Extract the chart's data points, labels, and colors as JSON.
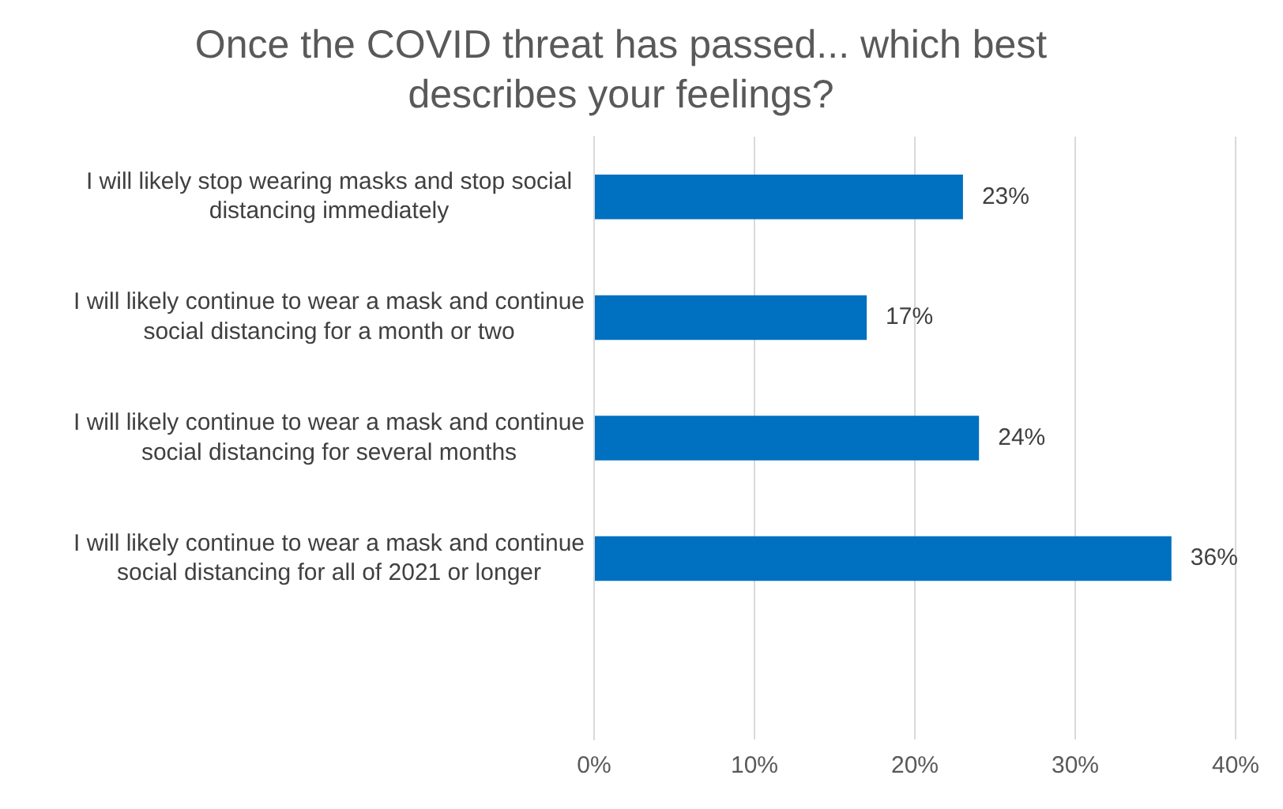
{
  "chart_data": {
    "type": "bar",
    "orientation": "horizontal",
    "title": "Once the COVID threat has passed... which best describes your feelings?",
    "categories": [
      "I will likely stop wearing masks and stop social distancing immediately",
      "I will likely continue to wear a mask and continue social distancing for a month or two",
      "I will likely continue to wear a mask and continue social distancing for several months",
      "I will likely continue to wear a mask and continue social distancing for all of 2021 or longer",
      null
    ],
    "values": [
      23,
      17,
      24,
      36,
      null
    ],
    "value_labels": [
      "23%",
      "17%",
      "24%",
      "36%",
      null
    ],
    "color": "#0070c0",
    "xlim": [
      0,
      40
    ],
    "xticks": [
      {
        "value": 0,
        "label": "0%"
      },
      {
        "value": 10,
        "label": "10%"
      },
      {
        "value": 20,
        "label": "20%"
      },
      {
        "value": 30,
        "label": "30%"
      },
      {
        "value": 40,
        "label": "40%"
      }
    ],
    "grid": "x",
    "legend": false
  }
}
